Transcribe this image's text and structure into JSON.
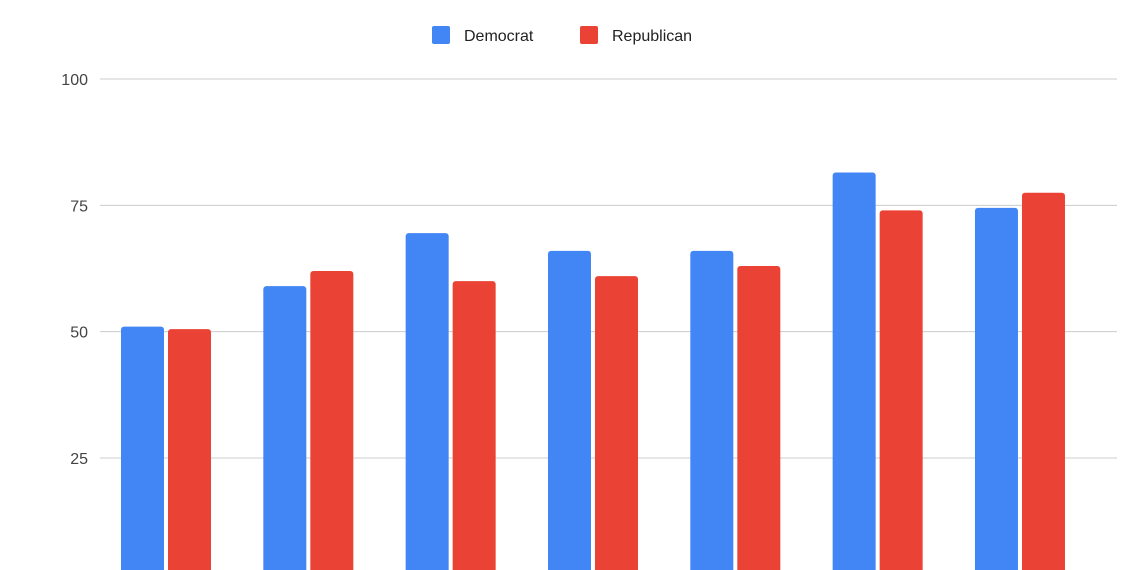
{
  "chart_data": {
    "type": "bar",
    "categories": [
      "",
      "",
      "",
      "",
      "",
      "",
      ""
    ],
    "series": [
      {
        "name": "Democrat",
        "color": "#4285f4",
        "values": [
          51,
          59,
          69.5,
          66,
          66,
          81.5,
          74.5
        ]
      },
      {
        "name": "Republican",
        "color": "#ea4335",
        "values": [
          50.5,
          62,
          60,
          61,
          63,
          74,
          77.5
        ]
      }
    ],
    "title": "",
    "xlabel": "",
    "ylabel": "",
    "ylim": [
      0,
      100
    ],
    "yticks": [
      25,
      50,
      75,
      100
    ],
    "grid": true,
    "legend": "top-center"
  }
}
